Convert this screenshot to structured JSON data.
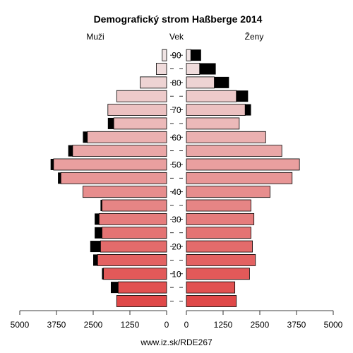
{
  "chart_data": {
    "type": "population_pyramid",
    "title": "Demografický strom Haßberge 2014",
    "left_label": "Muži",
    "center_label": "Vek",
    "right_label": "Ženy",
    "footer": "www.iz.sk/RDE267",
    "x_ticks_left": [
      "5000",
      "3750",
      "2500",
      "1250",
      "0"
    ],
    "x_ticks_right": [
      "0",
      "1250",
      "2500",
      "3750",
      "5000"
    ],
    "x_max": 5000,
    "age_tick_labels": [
      "10",
      "20",
      "30",
      "40",
      "50",
      "60",
      "70",
      "80",
      "90"
    ],
    "age_groups": [
      "0-4",
      "5-9",
      "10-14",
      "15-19",
      "20-24",
      "25-29",
      "30-34",
      "35-39",
      "40-44",
      "45-49",
      "50-54",
      "55-59",
      "60-64",
      "65-69",
      "70-74",
      "75-79",
      "80-84",
      "85-89",
      "90+"
    ],
    "male": {
      "base": [
        1700,
        1650,
        2150,
        2350,
        2250,
        2200,
        2300,
        2200,
        2850,
        3600,
        3850,
        3200,
        2700,
        1800,
        2000,
        1700,
        900,
        350,
        150
      ],
      "excess": [
        0,
        250,
        50,
        150,
        350,
        250,
        150,
        50,
        0,
        100,
        100,
        150,
        150,
        200,
        0,
        0,
        0,
        0,
        0
      ]
    },
    "female": {
      "base": [
        1700,
        1650,
        2150,
        2350,
        2250,
        2200,
        2300,
        2200,
        2850,
        3600,
        3850,
        3250,
        2700,
        1800,
        2000,
        1700,
        950,
        450,
        150
      ],
      "excess": [
        0,
        0,
        0,
        0,
        0,
        0,
        0,
        0,
        0,
        0,
        0,
        0,
        0,
        0,
        200,
        400,
        500,
        550,
        350
      ]
    },
    "colors": {
      "excess": "#000000",
      "young": "#e04848",
      "old": "#f0e4e4"
    }
  }
}
